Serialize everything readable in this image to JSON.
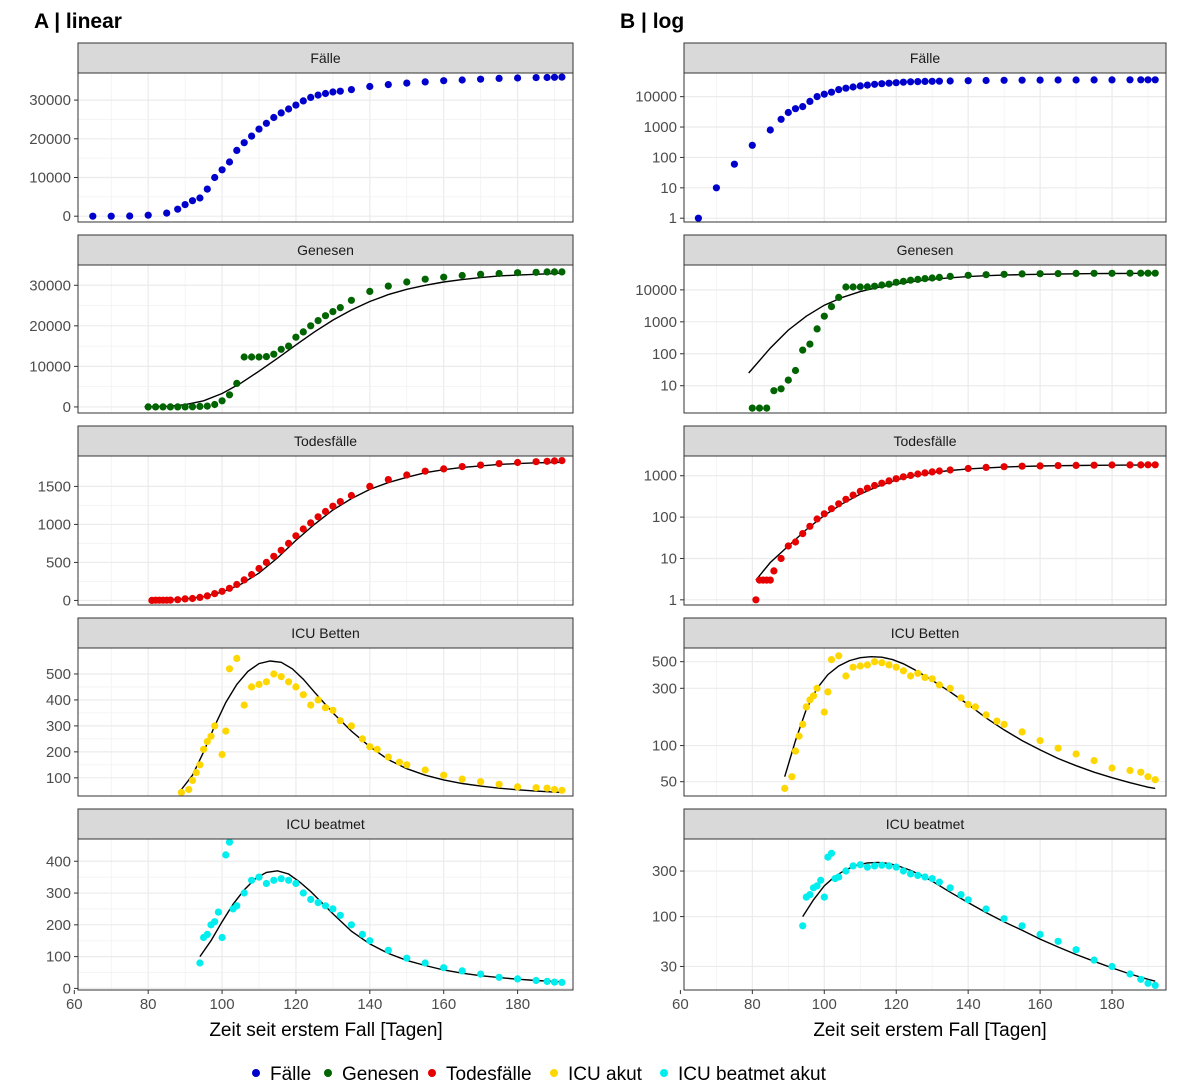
{
  "panels": [
    {
      "title": "A | linear",
      "scale": "linear"
    },
    {
      "title": "B | log",
      "scale": "log"
    }
  ],
  "xlabel": "Zeit seit erstem Fall [Tagen]",
  "xlim": [
    61,
    195
  ],
  "xticks": [
    60,
    80,
    100,
    120,
    140,
    160,
    180
  ],
  "legend": {
    "placement": "bottom",
    "items": [
      {
        "label": "Fälle",
        "color": "#0000cd"
      },
      {
        "label": "Genesen",
        "color": "#006400"
      },
      {
        "label": "Todesfälle",
        "color": "#e60000"
      },
      {
        "label": "ICU akut",
        "color": "#ffd700"
      },
      {
        "label": "ICU beatmet akut",
        "color": "#00eeee"
      }
    ]
  },
  "chart_data": [
    {
      "type": "scatter",
      "facet": "Fälle",
      "color": "#0000cd",
      "fit": false,
      "linear": {
        "ylim": [
          -1500,
          37000
        ],
        "yticks": [
          0,
          10000,
          20000,
          30000
        ]
      },
      "log": {
        "ylim": [
          0.75,
          60000
        ],
        "yticks": [
          1,
          10,
          100,
          1000,
          10000
        ]
      },
      "x": [
        65,
        70,
        75,
        80,
        85,
        88,
        90,
        92,
        94,
        96,
        98,
        100,
        102,
        104,
        106,
        108,
        110,
        112,
        114,
        116,
        118,
        120,
        122,
        124,
        126,
        128,
        130,
        132,
        135,
        140,
        145,
        150,
        155,
        160,
        165,
        170,
        175,
        180,
        185,
        188,
        190,
        192
      ],
      "y": [
        1,
        10,
        60,
        250,
        800,
        1800,
        3000,
        4000,
        4700,
        7000,
        10000,
        12000,
        14000,
        17000,
        19000,
        20700,
        22500,
        24000,
        25500,
        26700,
        27700,
        28700,
        29800,
        30700,
        31300,
        31700,
        32100,
        32300,
        32700,
        33500,
        34000,
        34400,
        34700,
        35000,
        35200,
        35400,
        35600,
        35700,
        35800,
        35850,
        35900,
        35950
      ]
    },
    {
      "type": "scatter",
      "facet": "Genesen",
      "color": "#006400",
      "fit": true,
      "linear": {
        "ylim": [
          -1500,
          35000
        ],
        "yticks": [
          0,
          10000,
          20000,
          30000
        ]
      },
      "log": {
        "ylim": [
          1.4,
          60000
        ],
        "yticks": [
          10,
          100,
          1000,
          10000
        ]
      },
      "x": [
        80,
        82,
        84,
        86,
        88,
        90,
        92,
        94,
        96,
        98,
        100,
        102,
        104,
        106,
        108,
        110,
        112,
        114,
        116,
        118,
        120,
        122,
        124,
        126,
        128,
        130,
        132,
        135,
        140,
        145,
        150,
        155,
        160,
        165,
        170,
        175,
        180,
        185,
        188,
        190,
        192
      ],
      "y": [
        2,
        2,
        2,
        7,
        8,
        15,
        30,
        130,
        200,
        600,
        1500,
        3000,
        5800,
        12300,
        12300,
        12300,
        12400,
        13000,
        14200,
        15000,
        17200,
        18500,
        20000,
        21300,
        22500,
        23500,
        24500,
        26300,
        28500,
        29800,
        30800,
        31500,
        32000,
        32400,
        32700,
        32900,
        33100,
        33200,
        33300,
        33300,
        33300
      ],
      "fit_curve": {
        "x": [
          79,
          85,
          90,
          95,
          100,
          105,
          110,
          115,
          120,
          125,
          130,
          135,
          140,
          145,
          150,
          155,
          160,
          165,
          170,
          175,
          180,
          185,
          190,
          192
        ],
        "y": [
          25,
          150,
          550,
          1500,
          3300,
          5800,
          8800,
          12000,
          15300,
          18500,
          21400,
          23900,
          26000,
          27700,
          29000,
          30000,
          30800,
          31400,
          31900,
          32300,
          32500,
          32700,
          32900,
          33000
        ]
      }
    },
    {
      "type": "scatter",
      "facet": "Todesfälle",
      "color": "#e60000",
      "fit": true,
      "linear": {
        "ylim": [
          -60,
          1900
        ],
        "yticks": [
          0,
          500,
          1000,
          1500
        ]
      },
      "log": {
        "ylim": [
          0.75,
          3000
        ],
        "yticks": [
          1,
          10,
          100,
          1000
        ]
      },
      "x": [
        81,
        82,
        83,
        84,
        85,
        86,
        88,
        90,
        92,
        94,
        96,
        98,
        100,
        102,
        104,
        106,
        108,
        110,
        112,
        114,
        116,
        118,
        120,
        122,
        124,
        126,
        128,
        130,
        132,
        135,
        140,
        145,
        150,
        155,
        160,
        165,
        170,
        175,
        180,
        185,
        188,
        190,
        192
      ],
      "y": [
        1,
        3,
        3,
        3,
        3,
        5,
        10,
        20,
        25,
        40,
        60,
        90,
        120,
        160,
        210,
        270,
        340,
        420,
        500,
        580,
        660,
        750,
        850,
        940,
        1020,
        1100,
        1170,
        1240,
        1300,
        1380,
        1500,
        1590,
        1650,
        1700,
        1730,
        1760,
        1780,
        1800,
        1815,
        1825,
        1830,
        1835,
        1840
      ],
      "fit_curve": {
        "x": [
          81,
          85,
          90,
          95,
          100,
          105,
          110,
          115,
          120,
          125,
          130,
          135,
          140,
          145,
          150,
          155,
          160,
          165,
          170,
          175,
          180,
          185,
          190,
          192
        ],
        "y": [
          3,
          8,
          20,
          50,
          110,
          210,
          360,
          560,
          790,
          1000,
          1190,
          1340,
          1460,
          1550,
          1620,
          1680,
          1720,
          1750,
          1770,
          1790,
          1800,
          1810,
          1815,
          1818
        ]
      }
    },
    {
      "type": "scatter",
      "facet": "ICU Betten",
      "color": "#ffd700",
      "fit": true,
      "linear": {
        "ylim": [
          30,
          600
        ],
        "yticks": [
          100,
          200,
          300,
          400,
          500
        ]
      },
      "log": {
        "ylim": [
          38,
          650
        ],
        "yticks": [
          50,
          100,
          300,
          500
        ]
      },
      "x": [
        89,
        91,
        92,
        93,
        94,
        95,
        96,
        97,
        98,
        100,
        101,
        102,
        104,
        106,
        108,
        110,
        112,
        114,
        116,
        118,
        120,
        122,
        124,
        126,
        128,
        130,
        132,
        135,
        138,
        140,
        142,
        145,
        148,
        150,
        155,
        160,
        165,
        170,
        175,
        180,
        185,
        188,
        190,
        192
      ],
      "y": [
        44,
        55,
        90,
        120,
        150,
        210,
        240,
        260,
        300,
        190,
        280,
        520,
        560,
        380,
        450,
        460,
        470,
        500,
        490,
        470,
        450,
        420,
        380,
        400,
        370,
        360,
        320,
        300,
        250,
        220,
        210,
        180,
        160,
        150,
        130,
        110,
        95,
        85,
        75,
        65,
        62,
        60,
        55,
        52
      ],
      "fit_curve": {
        "x": [
          89,
          92,
          95,
          98,
          101,
          104,
          107,
          110,
          113,
          116,
          119,
          122,
          125,
          130,
          135,
          140,
          145,
          150,
          155,
          160,
          165,
          170,
          175,
          180,
          185,
          190,
          192
        ],
        "y": [
          55,
          110,
          200,
          300,
          390,
          460,
          510,
          540,
          550,
          545,
          520,
          480,
          430,
          350,
          280,
          220,
          170,
          135,
          110,
          92,
          78,
          68,
          60,
          54,
          49,
          45,
          44
        ]
      }
    },
    {
      "type": "scatter",
      "facet": "ICU beatmet",
      "color": "#00eeee",
      "fit": true,
      "linear": {
        "ylim": [
          -5,
          470
        ],
        "yticks": [
          0,
          100,
          200,
          300,
          400
        ]
      },
      "log": {
        "ylim": [
          17,
          650
        ],
        "yticks": [
          30,
          100,
          300
        ]
      },
      "x": [
        94,
        95,
        96,
        97,
        98,
        99,
        100,
        101,
        102,
        103,
        104,
        106,
        108,
        110,
        112,
        114,
        116,
        118,
        120,
        122,
        124,
        126,
        128,
        130,
        132,
        135,
        138,
        140,
        145,
        150,
        155,
        160,
        165,
        170,
        175,
        180,
        185,
        188,
        190,
        192
      ],
      "y": [
        80,
        160,
        170,
        200,
        210,
        240,
        160,
        420,
        460,
        250,
        260,
        300,
        340,
        350,
        330,
        340,
        345,
        340,
        330,
        300,
        280,
        270,
        260,
        250,
        230,
        200,
        170,
        150,
        120,
        95,
        80,
        65,
        55,
        45,
        35,
        30,
        25,
        22,
        20,
        19
      ],
      "fit_curve": {
        "x": [
          94,
          97,
          100,
          103,
          106,
          109,
          112,
          115,
          118,
          121,
          124,
          127,
          130,
          135,
          140,
          145,
          150,
          155,
          160,
          165,
          170,
          175,
          180,
          185,
          190,
          192
        ],
        "y": [
          100,
          150,
          210,
          265,
          310,
          345,
          365,
          370,
          360,
          335,
          305,
          270,
          235,
          180,
          140,
          110,
          88,
          72,
          58,
          48,
          40,
          34,
          29,
          25,
          22,
          21
        ]
      }
    }
  ]
}
